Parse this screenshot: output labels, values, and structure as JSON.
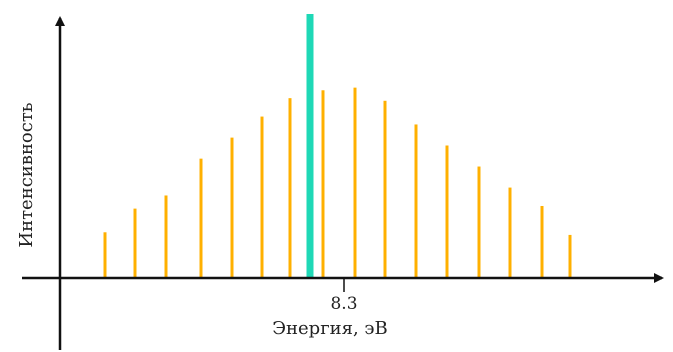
{
  "chart_data": {
    "type": "bar",
    "title": "",
    "xlabel": "Энергия, эВ",
    "ylabel": "Интенсивность",
    "x_tick_label": "8.3",
    "x_tick_value": 8.3,
    "grid": false,
    "legend": "none",
    "series": [
      {
        "color": "#FFB000",
        "values": [
          0.17,
          0.26,
          0.31,
          0.45,
          0.53,
          0.61,
          0.68,
          0.71,
          0.72,
          0.67,
          0.58,
          0.5,
          0.42,
          0.34,
          0.27,
          0.16
        ]
      },
      {
        "color": "#1ED8B6",
        "values": [
          1.0
        ]
      }
    ],
    "peak_index_after": 6
  }
}
